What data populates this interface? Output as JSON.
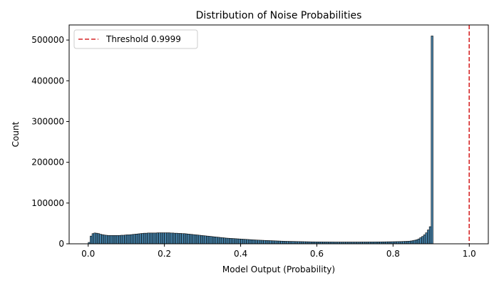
{
  "chart_data": {
    "type": "bar",
    "title": "Distribution of Noise Probabilities",
    "xlabel": "Model Output (Probability)",
    "ylabel": "Count",
    "xlim": [
      -0.05,
      1.05
    ],
    "ylim": [
      0,
      537000
    ],
    "xticks": [
      0.0,
      0.2,
      0.4,
      0.6,
      0.8,
      1.0
    ],
    "xtick_labels": [
      "0.0",
      "0.2",
      "0.4",
      "0.6",
      "0.8",
      "1.0"
    ],
    "yticks": [
      0,
      100000,
      200000,
      300000,
      400000,
      500000
    ],
    "ytick_labels": [
      "0",
      "100000",
      "200000",
      "300000",
      "400000",
      "500000"
    ],
    "bin_start": 0.0,
    "bin_width": 0.005,
    "values": [
      3500,
      19000,
      25000,
      26500,
      26000,
      25000,
      23500,
      22500,
      21500,
      21000,
      20500,
      20500,
      20500,
      20500,
      20500,
      20500,
      20500,
      21000,
      21000,
      21500,
      22000,
      22000,
      22500,
      23000,
      23500,
      24000,
      24500,
      25000,
      25500,
      26000,
      26000,
      26500,
      26500,
      26500,
      26500,
      26500,
      27000,
      27000,
      27000,
      27000,
      27000,
      27000,
      27000,
      26500,
      26500,
      26000,
      26000,
      25500,
      25500,
      25000,
      25000,
      24500,
      24000,
      23500,
      23000,
      22500,
      22000,
      21500,
      21000,
      20500,
      20000,
      19500,
      19000,
      18500,
      18000,
      17500,
      17000,
      16500,
      16000,
      15500,
      15000,
      14500,
      14000,
      13700,
      13400,
      13100,
      12800,
      12500,
      12200,
      11900,
      11600,
      11300,
      11000,
      10700,
      10400,
      10100,
      9800,
      9500,
      9200,
      9000,
      8800,
      8600,
      8400,
      8200,
      8000,
      7800,
      7600,
      7400,
      7200,
      7000,
      6800,
      6600,
      6400,
      6200,
      6100,
      6000,
      5900,
      5800,
      5700,
      5600,
      5500,
      5400,
      5300,
      5200,
      5100,
      5000,
      4900,
      4800,
      4800,
      4700,
      4700,
      4600,
      4600,
      4500,
      4500,
      4500,
      4400,
      4400,
      4400,
      4300,
      4300,
      4300,
      4300,
      4300,
      4300,
      4300,
      4300,
      4300,
      4300,
      4300,
      4300,
      4300,
      4300,
      4400,
      4400,
      4400,
      4400,
      4500,
      4500,
      4500,
      4600,
      4600,
      4700,
      4700,
      4800,
      4800,
      4900,
      5000,
      5000,
      5100,
      5200,
      5300,
      5400,
      5500,
      5600,
      5800,
      6000,
      6200,
      6500,
      7000,
      7800,
      8800,
      10000,
      12000,
      15000,
      18000,
      22000,
      27000,
      34000,
      42000,
      510000
    ],
    "threshold": {
      "value": 0.9999,
      "label": "Threshold 0.9999",
      "color": "#d62728",
      "style": "dashed"
    },
    "bar_color": "#4682a9",
    "bar_edge_color": "#000000",
    "legend_position": "upper-left",
    "grid": false
  }
}
